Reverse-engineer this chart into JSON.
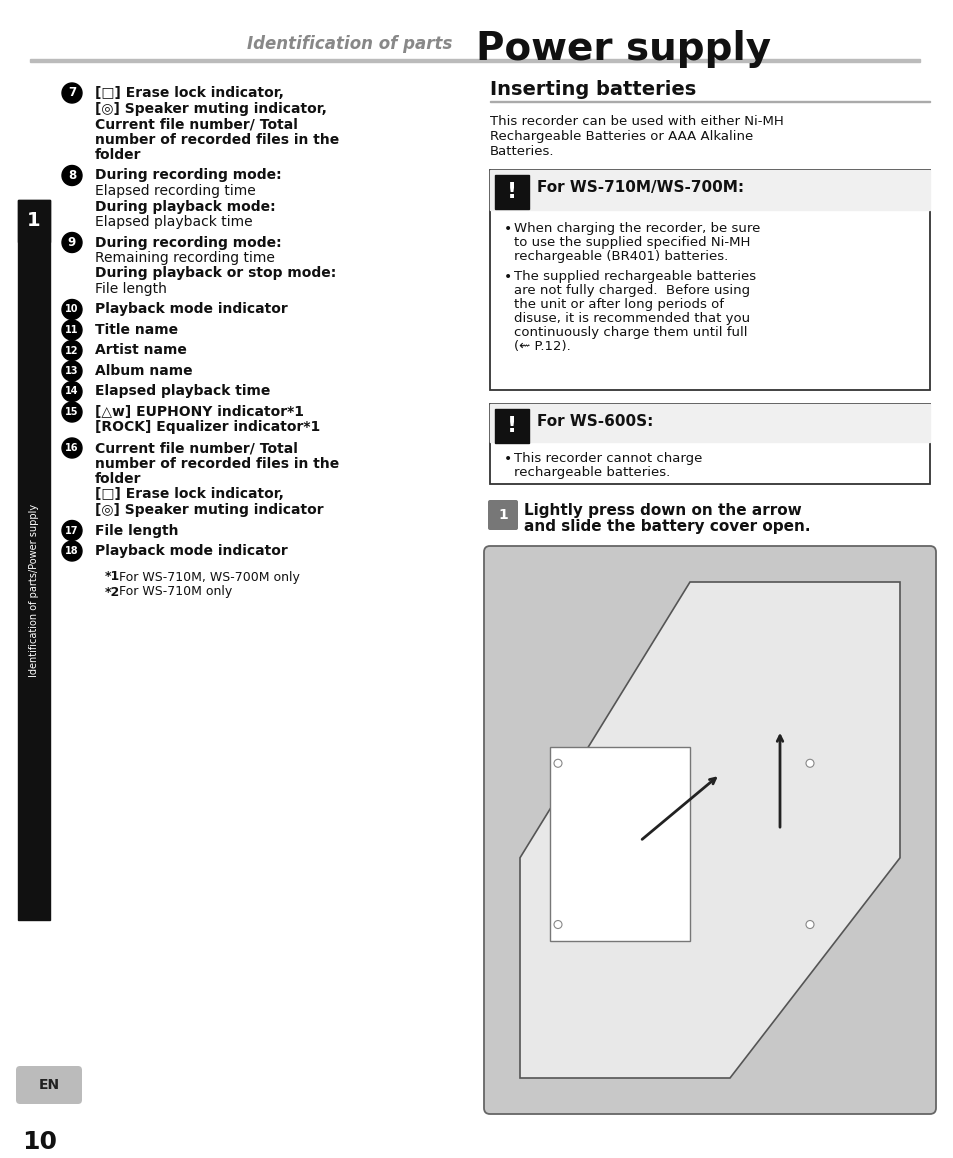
{
  "page_bg": "#ffffff",
  "header_left_text": "Identification of parts",
  "header_right_text": "Power supply",
  "sidebar_bg": "#111111",
  "sidebar_text": "Identification of parts/Power supply",
  "sidebar_number": "1",
  "page_number": "10",
  "left_items": [
    {
      "num": "7",
      "lines": [
        {
          "bold": true,
          "text": "[□] Erase lock indicator,"
        },
        {
          "bold": true,
          "text": "[◎] Speaker muting indicator,"
        },
        {
          "bold": true,
          "text": "Current file number/ Total"
        },
        {
          "bold": true,
          "text": "number of recorded files in the"
        },
        {
          "bold": true,
          "text": "folder"
        }
      ]
    },
    {
      "num": "8",
      "lines": [
        {
          "bold": true,
          "text": "During recording mode:"
        },
        {
          "bold": false,
          "text": "Elapsed recording time"
        },
        {
          "bold": true,
          "text": "During playback mode:"
        },
        {
          "bold": false,
          "text": "Elapsed playback time"
        }
      ]
    },
    {
      "num": "9",
      "lines": [
        {
          "bold": true,
          "text": "During recording mode:"
        },
        {
          "bold": false,
          "text": "Remaining recording time"
        },
        {
          "bold": true,
          "text": "During playback or stop mode:"
        },
        {
          "bold": false,
          "text": "File length"
        }
      ]
    },
    {
      "num": "10",
      "lines": [
        {
          "bold": true,
          "text": "Playback mode indicator"
        }
      ]
    },
    {
      "num": "11",
      "lines": [
        {
          "bold": true,
          "text": "Title name"
        }
      ]
    },
    {
      "num": "12",
      "lines": [
        {
          "bold": true,
          "text": "Artist name"
        }
      ]
    },
    {
      "num": "13",
      "lines": [
        {
          "bold": true,
          "text": "Album name"
        }
      ]
    },
    {
      "num": "14",
      "lines": [
        {
          "bold": true,
          "text": "Elapsed playback time"
        }
      ]
    },
    {
      "num": "15",
      "lines": [
        {
          "bold": true,
          "text": "[△w] EUPHONY indicator*1"
        },
        {
          "bold": true,
          "text": "[ROCK] Equalizer indicator*1"
        }
      ]
    },
    {
      "num": "16",
      "lines": [
        {
          "bold": true,
          "text": "Current file number/ Total"
        },
        {
          "bold": true,
          "text": "number of recorded files in the"
        },
        {
          "bold": true,
          "text": "folder"
        },
        {
          "bold": true,
          "text": "[□] Erase lock indicator,"
        },
        {
          "bold": true,
          "text": "[◎] Speaker muting indicator"
        }
      ]
    },
    {
      "num": "17",
      "lines": [
        {
          "bold": true,
          "text": "File length"
        }
      ]
    },
    {
      "num": "18",
      "lines": [
        {
          "bold": true,
          "text": "Playback mode indicator"
        }
      ]
    }
  ],
  "footnotes": [
    "*1 For WS-710M, WS-700M only",
    "*2 For WS-710M only"
  ],
  "right_title": "Inserting batteries",
  "right_intro": [
    "This recorder can be used with either Ni-MH",
    "Rechargeable Batteries or AAA Alkaline",
    "Batteries."
  ],
  "box1_title": "For WS-710M/WS-700M:",
  "box1_bullet1": [
    "When charging the recorder, be sure",
    "to use the supplied specified Ni-MH",
    "rechargeable (BR401) batteries."
  ],
  "box1_bullet2": [
    "The supplied rechargeable batteries",
    "are not fully charged.  Before using",
    "the unit or after long periods of",
    "disuse, it is recommended that you",
    "continuously charge them until full",
    "(⇜ P.12)."
  ],
  "box2_title": "For WS-600S:",
  "box2_bullet1": [
    "This recorder cannot charge",
    "rechargeable batteries."
  ],
  "step1_line1": "Lightly press down on the arrow",
  "step1_line2": "and slide the battery cover open.",
  "img_bg": "#c8c8c8"
}
